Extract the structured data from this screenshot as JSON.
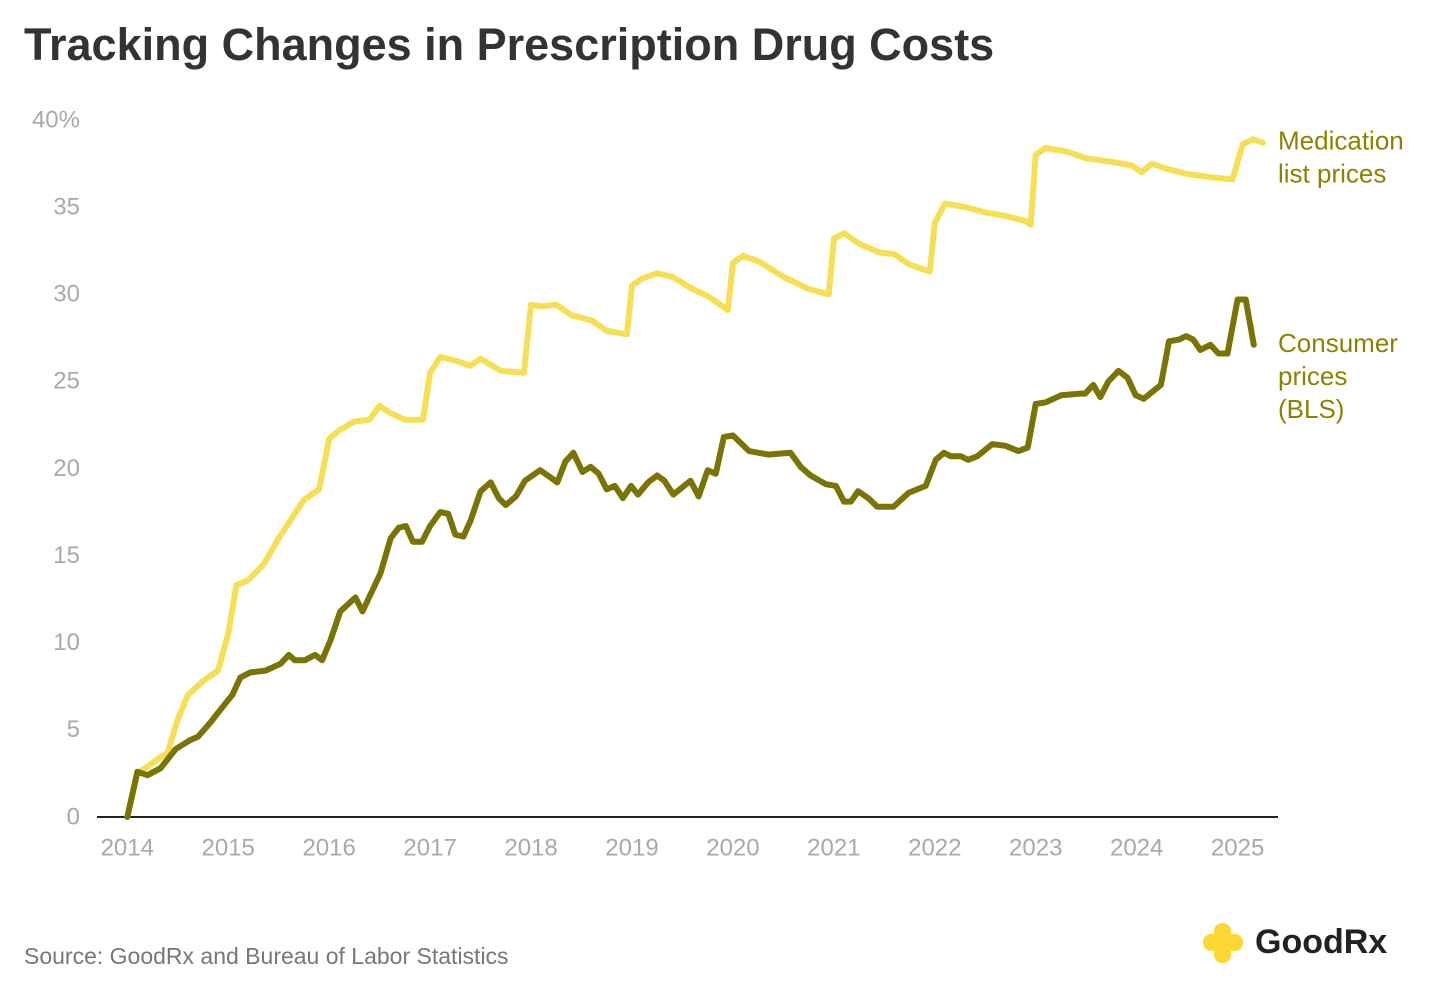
{
  "chart_data": {
    "type": "line",
    "title": "Tracking Changes in Prescription Drug Costs",
    "source": "Source: GoodRx and Bureau of Labor Statistics",
    "brand": "GoodRx",
    "xlim": [
      2013.7,
      2025.4
    ],
    "xticks": [
      2014,
      2015,
      2016,
      2017,
      2018,
      2019,
      2020,
      2021,
      2022,
      2023,
      2024,
      2025
    ],
    "ylim": [
      0,
      40
    ],
    "yticks": [
      0,
      5,
      10,
      15,
      20,
      25,
      30,
      35,
      {
        "value": 40,
        "label": "40%"
      }
    ],
    "grid": false,
    "series": [
      {
        "name": "Medication list prices",
        "color": "#f6df55",
        "x": [
          2014.0,
          2014.1,
          2014.25,
          2014.4,
          2014.5,
          2014.6,
          2014.75,
          2014.9,
          2015.0,
          2015.08,
          2015.2,
          2015.35,
          2015.5,
          2015.75,
          2015.9,
          2016.0,
          2016.1,
          2016.25,
          2016.4,
          2016.5,
          2016.6,
          2016.75,
          2016.93,
          2017.0,
          2017.1,
          2017.25,
          2017.4,
          2017.5,
          2017.7,
          2017.93,
          2018.0,
          2018.1,
          2018.25,
          2018.4,
          2018.6,
          2018.75,
          2018.95,
          2019.0,
          2019.1,
          2019.25,
          2019.4,
          2019.6,
          2019.75,
          2019.95,
          2020.0,
          2020.1,
          2020.25,
          2020.5,
          2020.75,
          2020.95,
          2021.0,
          2021.1,
          2021.25,
          2021.45,
          2021.6,
          2021.75,
          2021.95,
          2022.0,
          2022.1,
          2022.3,
          2022.5,
          2022.7,
          2022.9,
          2022.95,
          2023.0,
          2023.1,
          2023.3,
          2023.5,
          2023.75,
          2023.95,
          2024.05,
          2024.15,
          2024.3,
          2024.5,
          2024.75,
          2024.95,
          2025.05,
          2025.15,
          2025.25
        ],
        "values": [
          0,
          2.5,
          3.1,
          3.7,
          5.6,
          7.0,
          7.8,
          8.4,
          10.5,
          13.3,
          13.6,
          14.5,
          16.0,
          18.2,
          18.8,
          21.7,
          22.2,
          22.7,
          22.8,
          23.6,
          23.2,
          22.8,
          22.8,
          25.5,
          26.4,
          26.2,
          25.9,
          26.3,
          25.6,
          25.5,
          29.4,
          29.3,
          29.4,
          28.8,
          28.5,
          27.9,
          27.7,
          30.5,
          30.9,
          31.2,
          31.0,
          30.3,
          29.9,
          29.1,
          31.8,
          32.2,
          31.9,
          31.0,
          30.3,
          30.0,
          33.2,
          33.5,
          32.9,
          32.4,
          32.3,
          31.7,
          31.3,
          34.1,
          35.2,
          35.0,
          34.7,
          34.5,
          34.2,
          34.0,
          38.0,
          38.4,
          38.2,
          37.8,
          37.6,
          37.4,
          37.0,
          37.5,
          37.2,
          36.9,
          36.7,
          36.6,
          38.6,
          38.9,
          38.7
        ]
      },
      {
        "name": "Consumer prices (BLS)",
        "color": "#7a7405",
        "x": [
          2014.0,
          2014.1,
          2014.2,
          2014.33,
          2014.48,
          2014.62,
          2014.7,
          2014.82,
          2014.97,
          2015.04,
          2015.12,
          2015.22,
          2015.37,
          2015.52,
          2015.6,
          2015.66,
          2015.76,
          2015.86,
          2015.93,
          2016.01,
          2016.11,
          2016.26,
          2016.33,
          2016.51,
          2016.61,
          2016.69,
          2016.76,
          2016.83,
          2016.92,
          2017.0,
          2017.1,
          2017.18,
          2017.25,
          2017.33,
          2017.4,
          2017.5,
          2017.6,
          2017.68,
          2017.75,
          2017.85,
          2017.94,
          2018.09,
          2018.19,
          2018.26,
          2018.34,
          2018.42,
          2018.51,
          2018.59,
          2018.67,
          2018.75,
          2018.83,
          2018.91,
          2018.99,
          2019.06,
          2019.16,
          2019.25,
          2019.32,
          2019.41,
          2019.58,
          2019.66,
          2019.75,
          2019.83,
          2019.91,
          2020.0,
          2020.16,
          2020.35,
          2020.57,
          2020.67,
          2020.77,
          2020.92,
          2021.02,
          2021.1,
          2021.17,
          2021.24,
          2021.34,
          2021.43,
          2021.59,
          2021.74,
          2021.91,
          2022.01,
          2022.09,
          2022.16,
          2022.26,
          2022.33,
          2022.42,
          2022.57,
          2022.7,
          2022.83,
          2022.92,
          2023.0,
          2023.1,
          2023.25,
          2023.44,
          2023.49,
          2023.57,
          2023.64,
          2023.72,
          2023.82,
          2023.91,
          2023.99,
          2024.07,
          2024.24,
          2024.32,
          2024.42,
          2024.49,
          2024.56,
          2024.63,
          2024.73,
          2024.81,
          2024.9,
          2025.0,
          2025.08,
          2025.16
        ],
        "values": [
          0,
          2.6,
          2.4,
          2.8,
          3.9,
          4.4,
          4.6,
          5.4,
          6.5,
          7.0,
          8.0,
          8.3,
          8.4,
          8.8,
          9.3,
          9.0,
          9.0,
          9.3,
          9.0,
          10.1,
          11.8,
          12.6,
          11.8,
          14.0,
          16.0,
          16.6,
          16.7,
          15.8,
          15.8,
          16.7,
          17.5,
          17.4,
          16.2,
          16.1,
          17.0,
          18.7,
          19.2,
          18.3,
          17.9,
          18.4,
          19.3,
          19.9,
          19.5,
          19.2,
          20.4,
          20.9,
          19.8,
          20.1,
          19.7,
          18.8,
          19.0,
          18.3,
          19.0,
          18.5,
          19.2,
          19.6,
          19.3,
          18.5,
          19.3,
          18.4,
          19.9,
          19.7,
          21.8,
          21.9,
          21.0,
          20.8,
          20.9,
          20.1,
          19.6,
          19.1,
          19.0,
          18.1,
          18.1,
          18.7,
          18.3,
          17.8,
          17.8,
          18.6,
          19.0,
          20.5,
          20.9,
          20.7,
          20.7,
          20.5,
          20.7,
          21.4,
          21.3,
          21.0,
          21.2,
          23.7,
          23.8,
          24.2,
          24.3,
          24.3,
          24.8,
          24.1,
          25.0,
          25.6,
          25.2,
          24.2,
          24.0,
          24.8,
          27.3,
          27.4,
          27.6,
          27.4,
          26.8,
          27.1,
          26.6,
          26.6,
          29.7,
          29.7,
          27.1
        ]
      }
    ]
  }
}
